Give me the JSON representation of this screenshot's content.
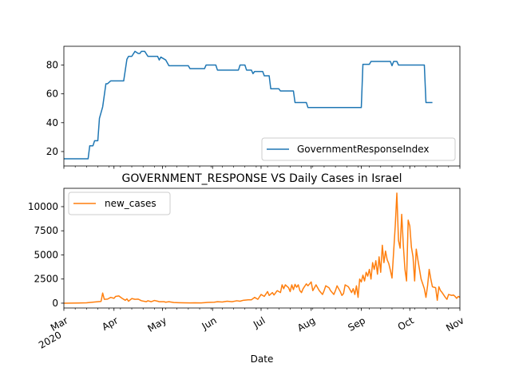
{
  "chart_data": [
    {
      "type": "line",
      "title": "",
      "xlabel": "",
      "ylabel": "",
      "ylim": [
        10,
        93
      ],
      "yticks": [
        20,
        40,
        60,
        80
      ],
      "legend_position": "lower right",
      "grid": false,
      "color": "#1f77b4",
      "series": [
        {
          "name": "GovernmentResponseIndex",
          "points": [
            [
              "2020-03-01",
              15
            ],
            [
              "2020-03-16",
              15
            ],
            [
              "2020-03-17",
              24
            ],
            [
              "2020-03-19",
              24
            ],
            [
              "2020-03-20",
              27.5
            ],
            [
              "2020-03-22",
              27.5
            ],
            [
              "2020-03-23",
              43
            ],
            [
              "2020-03-25",
              51
            ],
            [
              "2020-03-27",
              67
            ],
            [
              "2020-03-28",
              67
            ],
            [
              "2020-03-30",
              69
            ],
            [
              "2020-04-07",
              69
            ],
            [
              "2020-04-09",
              84
            ],
            [
              "2020-04-10",
              86
            ],
            [
              "2020-04-12",
              86
            ],
            [
              "2020-04-14",
              89.5
            ],
            [
              "2020-04-16",
              88
            ],
            [
              "2020-04-17",
              88
            ],
            [
              "2020-04-18",
              89.5
            ],
            [
              "2020-04-20",
              89.5
            ],
            [
              "2020-04-22",
              86
            ],
            [
              "2020-04-28",
              86
            ],
            [
              "2020-04-29",
              83.5
            ],
            [
              "2020-04-30",
              85.5
            ],
            [
              "2020-05-03",
              83.5
            ],
            [
              "2020-05-05",
              79.5
            ],
            [
              "2020-05-17",
              79.5
            ],
            [
              "2020-05-18",
              77.5
            ],
            [
              "2020-05-27",
              77.5
            ],
            [
              "2020-05-28",
              80
            ],
            [
              "2020-06-03",
              80
            ],
            [
              "2020-06-04",
              76.5
            ],
            [
              "2020-06-17",
              76.5
            ],
            [
              "2020-06-18",
              80
            ],
            [
              "2020-06-21",
              80
            ],
            [
              "2020-06-22",
              76.5
            ],
            [
              "2020-06-25",
              76.5
            ],
            [
              "2020-06-26",
              74
            ],
            [
              "2020-06-27",
              75.5
            ],
            [
              "2020-07-02",
              75.5
            ],
            [
              "2020-07-03",
              72.5
            ],
            [
              "2020-07-06",
              72.5
            ],
            [
              "2020-07-07",
              63.5
            ],
            [
              "2020-07-12",
              63.5
            ],
            [
              "2020-07-13",
              62
            ],
            [
              "2020-07-21",
              62
            ],
            [
              "2020-07-22",
              54
            ],
            [
              "2020-07-29",
              54
            ],
            [
              "2020-07-30",
              50.5
            ],
            [
              "2020-09-01",
              50.5
            ],
            [
              "2020-09-02",
              80.5
            ],
            [
              "2020-09-06",
              80.5
            ],
            [
              "2020-09-07",
              82.5
            ],
            [
              "2020-09-19",
              82.5
            ],
            [
              "2020-09-20",
              79.5
            ],
            [
              "2020-09-21",
              82.5
            ],
            [
              "2020-09-23",
              82.5
            ],
            [
              "2020-09-24",
              80
            ],
            [
              "2020-10-10",
              80
            ],
            [
              "2020-10-11",
              54
            ],
            [
              "2020-10-15",
              54
            ]
          ]
        }
      ]
    },
    {
      "type": "line",
      "title": "GOVERNMENT_RESPONSE VS Daily Cases in Israel",
      "xlabel": "Date",
      "ylabel": "",
      "ylim": [
        -500,
        11900
      ],
      "yticks": [
        0,
        2500,
        5000,
        7500,
        10000
      ],
      "ytick_labels": [
        "0",
        "2500",
        "5000",
        "7500",
        "10000"
      ],
      "legend_position": "upper left",
      "grid": false,
      "color": "#ff7f0e",
      "xticks": [
        {
          "date": "2020-03-01",
          "label": "Mar",
          "sub": "2020"
        },
        {
          "date": "2020-04-01",
          "label": "Apr",
          "sub": ""
        },
        {
          "date": "2020-05-01",
          "label": "May",
          "sub": ""
        },
        {
          "date": "2020-06-01",
          "label": "Jun",
          "sub": ""
        },
        {
          "date": "2020-07-01",
          "label": "Jul",
          "sub": ""
        },
        {
          "date": "2020-08-01",
          "label": "Aug",
          "sub": ""
        },
        {
          "date": "2020-09-01",
          "label": "Sep",
          "sub": ""
        },
        {
          "date": "2020-10-01",
          "label": "Oct",
          "sub": ""
        },
        {
          "date": "2020-11-01",
          "label": "Nov",
          "sub": ""
        }
      ],
      "series": [
        {
          "name": "new_cases",
          "points": [
            [
              "2020-03-01",
              0
            ],
            [
              "2020-03-10",
              15
            ],
            [
              "2020-03-15",
              40
            ],
            [
              "2020-03-20",
              120
            ],
            [
              "2020-03-24",
              180
            ],
            [
              "2020-03-25",
              1050
            ],
            [
              "2020-03-26",
              400
            ],
            [
              "2020-03-28",
              420
            ],
            [
              "2020-03-30",
              600
            ],
            [
              "2020-04-01",
              500
            ],
            [
              "2020-04-02",
              700
            ],
            [
              "2020-04-04",
              750
            ],
            [
              "2020-04-06",
              500
            ],
            [
              "2020-04-08",
              300
            ],
            [
              "2020-04-09",
              450
            ],
            [
              "2020-04-10",
              200
            ],
            [
              "2020-04-12",
              480
            ],
            [
              "2020-04-14",
              400
            ],
            [
              "2020-04-16",
              420
            ],
            [
              "2020-04-18",
              250
            ],
            [
              "2020-04-21",
              150
            ],
            [
              "2020-04-22",
              250
            ],
            [
              "2020-04-24",
              150
            ],
            [
              "2020-04-26",
              280
            ],
            [
              "2020-04-28",
              200
            ],
            [
              "2020-04-29",
              150
            ],
            [
              "2020-05-02",
              150
            ],
            [
              "2020-05-03",
              100
            ],
            [
              "2020-05-05",
              150
            ],
            [
              "2020-05-08",
              70
            ],
            [
              "2020-05-11",
              50
            ],
            [
              "2020-05-14",
              40
            ],
            [
              "2020-05-18",
              25
            ],
            [
              "2020-05-21",
              40
            ],
            [
              "2020-05-25",
              30
            ],
            [
              "2020-05-29",
              80
            ],
            [
              "2020-06-02",
              100
            ],
            [
              "2020-06-04",
              150
            ],
            [
              "2020-06-07",
              120
            ],
            [
              "2020-06-10",
              200
            ],
            [
              "2020-06-13",
              150
            ],
            [
              "2020-06-16",
              250
            ],
            [
              "2020-06-18",
              200
            ],
            [
              "2020-06-20",
              300
            ],
            [
              "2020-06-23",
              350
            ],
            [
              "2020-06-25",
              350
            ],
            [
              "2020-06-27",
              600
            ],
            [
              "2020-06-29",
              400
            ],
            [
              "2020-07-01",
              900
            ],
            [
              "2020-07-03",
              700
            ],
            [
              "2020-07-05",
              1200
            ],
            [
              "2020-07-06",
              800
            ],
            [
              "2020-07-08",
              1100
            ],
            [
              "2020-07-09",
              850
            ],
            [
              "2020-07-11",
              1300
            ],
            [
              "2020-07-13",
              1100
            ],
            [
              "2020-07-14",
              1900
            ],
            [
              "2020-07-15",
              1500
            ],
            [
              "2020-07-16",
              1900
            ],
            [
              "2020-07-18",
              1600
            ],
            [
              "2020-07-19",
              1200
            ],
            [
              "2020-07-20",
              1900
            ],
            [
              "2020-07-21",
              1400
            ],
            [
              "2020-07-22",
              1950
            ],
            [
              "2020-07-23",
              1650
            ],
            [
              "2020-07-24",
              1900
            ],
            [
              "2020-07-25",
              1300
            ],
            [
              "2020-07-26",
              1100
            ],
            [
              "2020-07-27",
              1500
            ],
            [
              "2020-07-29",
              2000
            ],
            [
              "2020-07-30",
              1800
            ],
            [
              "2020-08-01",
              2200
            ],
            [
              "2020-08-02",
              1300
            ],
            [
              "2020-08-04",
              1900
            ],
            [
              "2020-08-05",
              1600
            ],
            [
              "2020-08-06",
              1300
            ],
            [
              "2020-08-07",
              1100
            ],
            [
              "2020-08-08",
              900
            ],
            [
              "2020-08-09",
              1300
            ],
            [
              "2020-08-10",
              1800
            ],
            [
              "2020-08-12",
              1600
            ],
            [
              "2020-08-13",
              1300
            ],
            [
              "2020-08-15",
              900
            ],
            [
              "2020-08-16",
              1300
            ],
            [
              "2020-08-17",
              1800
            ],
            [
              "2020-08-18",
              1500
            ],
            [
              "2020-08-19",
              1200
            ],
            [
              "2020-08-20",
              800
            ],
            [
              "2020-08-21",
              1000
            ],
            [
              "2020-08-22",
              1900
            ],
            [
              "2020-08-24",
              1700
            ],
            [
              "2020-08-26",
              1100
            ],
            [
              "2020-08-27",
              1500
            ],
            [
              "2020-08-28",
              900
            ],
            [
              "2020-08-29",
              1800
            ],
            [
              "2020-08-30",
              600
            ],
            [
              "2020-08-31",
              2500
            ],
            [
              "2020-09-01",
              2200
            ],
            [
              "2020-09-02",
              2900
            ],
            [
              "2020-09-03",
              2300
            ],
            [
              "2020-09-04",
              3200
            ],
            [
              "2020-09-05",
              2800
            ],
            [
              "2020-09-06",
              3500
            ],
            [
              "2020-09-07",
              2500
            ],
            [
              "2020-09-08",
              4200
            ],
            [
              "2020-09-09",
              3500
            ],
            [
              "2020-09-10",
              4400
            ],
            [
              "2020-09-11",
              3000
            ],
            [
              "2020-09-12",
              4800
            ],
            [
              "2020-09-13",
              3200
            ],
            [
              "2020-09-14",
              6000
            ],
            [
              "2020-09-15",
              4200
            ],
            [
              "2020-09-16",
              5400
            ],
            [
              "2020-09-17",
              4500
            ],
            [
              "2020-09-18",
              4100
            ],
            [
              "2020-09-19",
              3400
            ],
            [
              "2020-09-20",
              2600
            ],
            [
              "2020-09-22",
              8000
            ],
            [
              "2020-09-23",
              11400
            ],
            [
              "2020-09-24",
              6500
            ],
            [
              "2020-09-25",
              5700
            ],
            [
              "2020-09-26",
              9200
            ],
            [
              "2020-09-27",
              6000
            ],
            [
              "2020-09-28",
              3500
            ],
            [
              "2020-09-29",
              2300
            ],
            [
              "2020-09-30",
              8600
            ],
            [
              "2020-10-01",
              8000
            ],
            [
              "2020-10-02",
              5800
            ],
            [
              "2020-10-03",
              4800
            ],
            [
              "2020-10-04",
              2300
            ],
            [
              "2020-10-05",
              5600
            ],
            [
              "2020-10-06",
              4500
            ],
            [
              "2020-10-07",
              3500
            ],
            [
              "2020-10-08",
              2500
            ],
            [
              "2020-10-09",
              2000
            ],
            [
              "2020-10-10",
              1500
            ],
            [
              "2020-10-11",
              600
            ],
            [
              "2020-10-12",
              1800
            ],
            [
              "2020-10-13",
              3500
            ],
            [
              "2020-10-14",
              2500
            ],
            [
              "2020-10-15",
              1700
            ],
            [
              "2020-10-17",
              1600
            ],
            [
              "2020-10-18",
              300
            ],
            [
              "2020-10-19",
              1700
            ],
            [
              "2020-10-20",
              1300
            ],
            [
              "2020-10-21",
              1100
            ],
            [
              "2020-10-22",
              850
            ],
            [
              "2020-10-23",
              600
            ],
            [
              "2020-10-24",
              400
            ],
            [
              "2020-10-25",
              900
            ],
            [
              "2020-10-27",
              800
            ],
            [
              "2020-10-28",
              850
            ],
            [
              "2020-10-29",
              700
            ],
            [
              "2020-10-30",
              500
            ],
            [
              "2020-10-31",
              700
            ],
            [
              "2020-11-01",
              600
            ]
          ]
        }
      ]
    }
  ]
}
